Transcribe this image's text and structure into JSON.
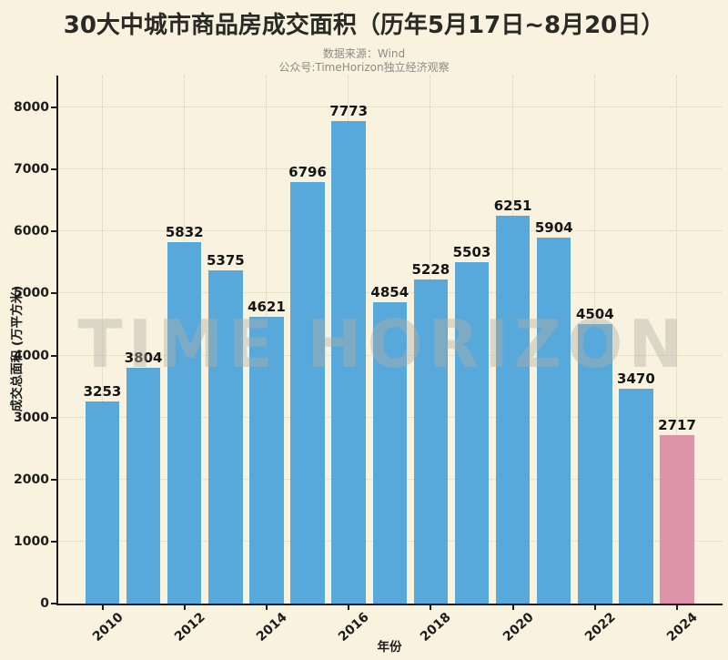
{
  "page": {
    "title": "30大中城市商品房成交面积（历年5月17日~8月20日）",
    "source_line": "数据来源：Wind",
    "account_line": "公众号:TimeHorizon独立经济观察",
    "watermark": "TIME HORIZON"
  },
  "colors": {
    "background": "#f8f2df",
    "bar": "#57a8db",
    "bar_highlight": "#dd94ab",
    "text": "#1c1c1c",
    "subtitle": "#8b8b86",
    "grid": "#d8d0b8",
    "axis": "#1c1c1c"
  },
  "chart_data": {
    "type": "bar",
    "title": "30大中城市商品房成交面积（历年5月17日~8月20日）",
    "xlabel": "年份",
    "ylabel": "成交总面积 (万平方米)",
    "categories": [
      "2010",
      "2011",
      "2012",
      "2013",
      "2014",
      "2015",
      "2016",
      "2017",
      "2018",
      "2019",
      "2020",
      "2021",
      "2022",
      "2023",
      "2024"
    ],
    "values": [
      3253,
      3804,
      5832,
      5375,
      4621,
      6796,
      7773,
      4854,
      5228,
      5503,
      6251,
      5904,
      4504,
      3470,
      2717
    ],
    "highlight_index": 14,
    "bar_color": "#57a8db",
    "highlight_color": "#dd94ab",
    "ylim": [
      0,
      8514
    ],
    "yticks": [
      0,
      1000,
      2000,
      3000,
      4000,
      5000,
      6000,
      7000,
      8000
    ],
    "xticks_shown": [
      "2010",
      "2012",
      "2014",
      "2016",
      "2018",
      "2020",
      "2022",
      "2024"
    ],
    "grid": "dotted",
    "legend_position": "none"
  }
}
